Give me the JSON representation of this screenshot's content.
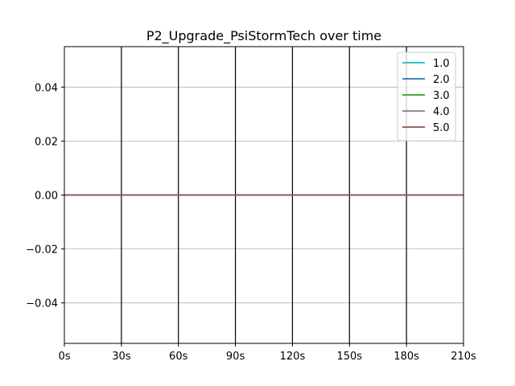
{
  "chart_data": {
    "type": "line",
    "title": "P2_Upgrade_PsiStormTech over time",
    "xlabel": "",
    "ylabel": "",
    "x_ticks": [
      {
        "value": 0,
        "label": "0s"
      },
      {
        "value": 30,
        "label": "30s"
      },
      {
        "value": 60,
        "label": "60s"
      },
      {
        "value": 90,
        "label": "90s"
      },
      {
        "value": 120,
        "label": "120s"
      },
      {
        "value": 150,
        "label": "150s"
      },
      {
        "value": 180,
        "label": "180s"
      },
      {
        "value": 210,
        "label": "210s"
      }
    ],
    "y_ticks": [
      {
        "value": 0.04,
        "label": "0.04"
      },
      {
        "value": 0.02,
        "label": "0.02"
      },
      {
        "value": 0.0,
        "label": "0.00"
      },
      {
        "value": -0.02,
        "label": "−0.02"
      },
      {
        "value": -0.04,
        "label": "−0.04"
      }
    ],
    "xlim": [
      0,
      210
    ],
    "ylim": [
      -0.055,
      0.055
    ],
    "grid": "y",
    "vertical_markers": [
      30,
      60,
      90,
      120,
      150,
      180
    ],
    "legend_position": "top-right",
    "series": [
      {
        "name": "1.0",
        "color": "#17becf",
        "x": [
          0,
          210
        ],
        "y": [
          0,
          0
        ]
      },
      {
        "name": "2.0",
        "color": "#1f77b4",
        "x": [
          0,
          210
        ],
        "y": [
          0,
          0
        ]
      },
      {
        "name": "3.0",
        "color": "#2ca02c",
        "x": [
          0,
          210
        ],
        "y": [
          0,
          0
        ]
      },
      {
        "name": "4.0",
        "color": "#7f7f7f",
        "x": [
          0,
          210
        ],
        "y": [
          0,
          0
        ]
      },
      {
        "name": "5.0",
        "color": "#8c564b",
        "x": [
          0,
          210
        ],
        "y": [
          0,
          0
        ]
      }
    ]
  }
}
